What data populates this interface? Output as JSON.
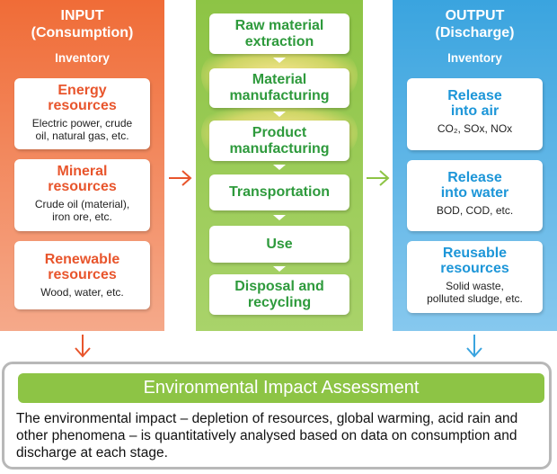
{
  "colors": {
    "input": "#f06c37",
    "process": "#8dc445",
    "output": "#3aa4df",
    "arrow_in": "#e8552c",
    "arrow_out": "#8dc445",
    "arrow_down_out": "#3aa4df"
  },
  "input": {
    "title": "INPUT\n(Consumption)",
    "subtitle": "Inventory",
    "cards": [
      {
        "title": "Energy\nresources",
        "desc": "Electric power, crude\noil, natural gas, etc."
      },
      {
        "title": "Mineral\nresources",
        "desc": "Crude oil (material),\niron ore, etc."
      },
      {
        "title": "Renewable\nresources",
        "desc": "Wood, water, etc."
      }
    ]
  },
  "process": {
    "steps": [
      "Raw material\nextraction",
      "Material\nmanufacturing",
      "Product\nmanufacturing",
      "Transportation",
      "Use",
      "Disposal and\nrecycling"
    ]
  },
  "output": {
    "title": "OUTPUT\n(Discharge)",
    "subtitle": "Inventory",
    "cards": [
      {
        "title": "Release\ninto air",
        "desc": "CO₂, SOx, NOx"
      },
      {
        "title": "Release\ninto water",
        "desc": "BOD, COD, etc."
      },
      {
        "title": "Reusable\nresources",
        "desc": "Solid waste,\npolluted sludge, etc."
      }
    ]
  },
  "assessment": {
    "title": "Environmental Impact Assessment",
    "description": "The environmental impact – depletion of resources, global warming, acid rain and other phenomena – is quantitatively analysed based on data on consumption and discharge at each stage."
  }
}
